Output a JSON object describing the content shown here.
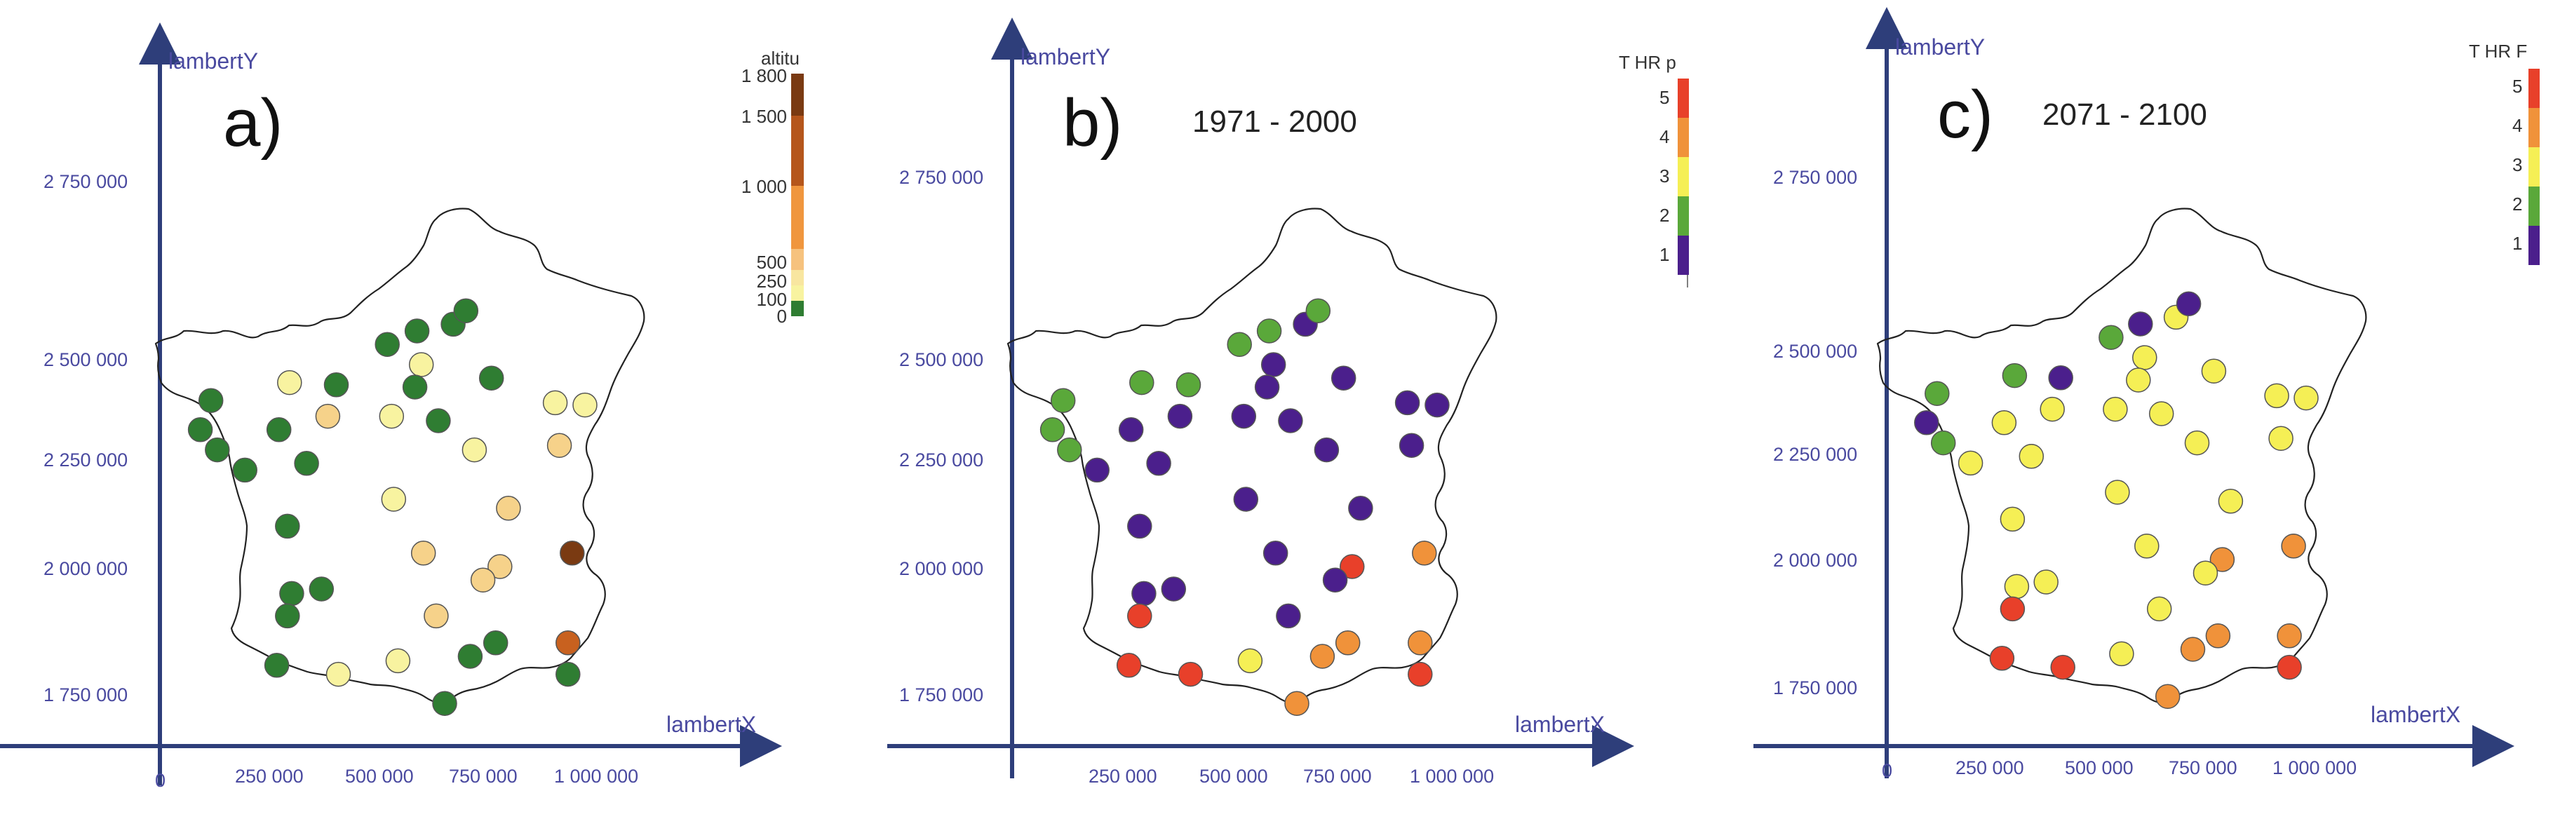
{
  "axes": {
    "y_label": "lambertY",
    "x_label": "lambertX",
    "y_ticks": [
      "2 750 000",
      "2 500 000",
      "2 250 000",
      "2 000 000",
      "1 750 000"
    ],
    "x_ticks": [
      "250 000",
      "500 000",
      "750 000",
      "1 000 000"
    ],
    "origin_label": "0"
  },
  "colors": {
    "axis": "#2e3e7a",
    "tick_text": "#4a4aa0",
    "class_1": "#4b1f8c",
    "class_2": "#5aa83a",
    "class_3": "#f5ef55",
    "class_4": "#f0923a",
    "class_5": "#e8402a",
    "alt_low": "#2f7d32",
    "alt_100": "#f8f3a0",
    "alt_250": "#f6d28a",
    "alt_500": "#f0963e",
    "alt_1000": "#c8611f",
    "alt_1800": "#7a3a12"
  },
  "panels": [
    {
      "letter": "a)",
      "period": "",
      "legend": {
        "title": "altitu",
        "ticks": [
          "1 800",
          "1 500",
          "1 000",
          "500",
          "250",
          "100",
          "0"
        ]
      },
      "stations": [
        {
          "lx": 120000,
          "ly": 2420000,
          "alt": 20
        },
        {
          "lx": 95000,
          "ly": 2355000,
          "alt": 30
        },
        {
          "lx": 135000,
          "ly": 2310000,
          "alt": 25
        },
        {
          "lx": 200000,
          "ly": 2265000,
          "alt": 15
        },
        {
          "lx": 280000,
          "ly": 2355000,
          "alt": 40
        },
        {
          "lx": 305000,
          "ly": 2460000,
          "alt": 150
        },
        {
          "lx": 415000,
          "ly": 2455000,
          "alt": 60
        },
        {
          "lx": 395000,
          "ly": 2385000,
          "alt": 320
        },
        {
          "lx": 345000,
          "ly": 2280000,
          "alt": 50
        },
        {
          "lx": 535000,
          "ly": 2545000,
          "alt": 70
        },
        {
          "lx": 605000,
          "ly": 2575000,
          "alt": 40
        },
        {
          "lx": 615000,
          "ly": 2500000,
          "alt": 140
        },
        {
          "lx": 600000,
          "ly": 2450000,
          "alt": 80
        },
        {
          "lx": 545000,
          "ly": 2385000,
          "alt": 160
        },
        {
          "lx": 655000,
          "ly": 2375000,
          "alt": 60
        },
        {
          "lx": 690000,
          "ly": 2590000,
          "alt": 30
        },
        {
          "lx": 720000,
          "ly": 2620000,
          "alt": 20
        },
        {
          "lx": 780000,
          "ly": 2470000,
          "alt": 90
        },
        {
          "lx": 740000,
          "ly": 2310000,
          "alt": 180
        },
        {
          "lx": 930000,
          "ly": 2415000,
          "alt": 170
        },
        {
          "lx": 1000000,
          "ly": 2410000,
          "alt": 160
        },
        {
          "lx": 940000,
          "ly": 2320000,
          "alt": 300
        },
        {
          "lx": 300000,
          "ly": 2140000,
          "alt": 20
        },
        {
          "lx": 550000,
          "ly": 2200000,
          "alt": 150
        },
        {
          "lx": 820000,
          "ly": 2180000,
          "alt": 260
        },
        {
          "lx": 620000,
          "ly": 2080000,
          "alt": 420
        },
        {
          "lx": 800000,
          "ly": 2050000,
          "alt": 460
        },
        {
          "lx": 760000,
          "ly": 2020000,
          "alt": 420
        },
        {
          "lx": 970000,
          "ly": 2080000,
          "alt": 1700
        },
        {
          "lx": 310000,
          "ly": 1990000,
          "alt": 10
        },
        {
          "lx": 380000,
          "ly": 2000000,
          "alt": 40
        },
        {
          "lx": 300000,
          "ly": 1940000,
          "alt": 30
        },
        {
          "lx": 650000,
          "ly": 1940000,
          "alt": 450
        },
        {
          "lx": 275000,
          "ly": 1830000,
          "alt": 40
        },
        {
          "lx": 420000,
          "ly": 1810000,
          "alt": 240
        },
        {
          "lx": 560000,
          "ly": 1840000,
          "alt": 160
        },
        {
          "lx": 730000,
          "ly": 1850000,
          "alt": 20
        },
        {
          "lx": 790000,
          "ly": 1880000,
          "alt": 30
        },
        {
          "lx": 960000,
          "ly": 1880000,
          "alt": 1350
        },
        {
          "lx": 960000,
          "ly": 1810000,
          "alt": 10
        },
        {
          "lx": 670000,
          "ly": 1745000,
          "alt": 30
        }
      ]
    },
    {
      "letter": "b)",
      "period": "1971 - 2000",
      "legend": {
        "title": "T HR p",
        "ticks": [
          "5",
          "4",
          "3",
          "2",
          "1"
        ]
      },
      "stations": [
        {
          "lx": 120000,
          "ly": 2420000,
          "c": 2
        },
        {
          "lx": 95000,
          "ly": 2355000,
          "c": 2
        },
        {
          "lx": 135000,
          "ly": 2310000,
          "c": 2
        },
        {
          "lx": 200000,
          "ly": 2265000,
          "c": 1
        },
        {
          "lx": 280000,
          "ly": 2355000,
          "c": 1
        },
        {
          "lx": 305000,
          "ly": 2460000,
          "c": 2
        },
        {
          "lx": 415000,
          "ly": 2455000,
          "c": 2
        },
        {
          "lx": 395000,
          "ly": 2385000,
          "c": 1
        },
        {
          "lx": 345000,
          "ly": 2280000,
          "c": 1
        },
        {
          "lx": 535000,
          "ly": 2545000,
          "c": 2
        },
        {
          "lx": 605000,
          "ly": 2575000,
          "c": 2
        },
        {
          "lx": 615000,
          "ly": 2500000,
          "c": 1
        },
        {
          "lx": 600000,
          "ly": 2450000,
          "c": 1
        },
        {
          "lx": 545000,
          "ly": 2385000,
          "c": 1
        },
        {
          "lx": 655000,
          "ly": 2375000,
          "c": 1
        },
        {
          "lx": 690000,
          "ly": 2590000,
          "c": 1
        },
        {
          "lx": 720000,
          "ly": 2620000,
          "c": 2
        },
        {
          "lx": 780000,
          "ly": 2470000,
          "c": 1
        },
        {
          "lx": 740000,
          "ly": 2310000,
          "c": 1
        },
        {
          "lx": 930000,
          "ly": 2415000,
          "c": 1
        },
        {
          "lx": 1000000,
          "ly": 2410000,
          "c": 1
        },
        {
          "lx": 940000,
          "ly": 2320000,
          "c": 1
        },
        {
          "lx": 300000,
          "ly": 2140000,
          "c": 1
        },
        {
          "lx": 550000,
          "ly": 2200000,
          "c": 1
        },
        {
          "lx": 820000,
          "ly": 2180000,
          "c": 1
        },
        {
          "lx": 620000,
          "ly": 2080000,
          "c": 1
        },
        {
          "lx": 800000,
          "ly": 2050000,
          "c": 5
        },
        {
          "lx": 760000,
          "ly": 2020000,
          "c": 1
        },
        {
          "lx": 970000,
          "ly": 2080000,
          "c": 4
        },
        {
          "lx": 310000,
          "ly": 1990000,
          "c": 1
        },
        {
          "lx": 380000,
          "ly": 2000000,
          "c": 1
        },
        {
          "lx": 300000,
          "ly": 1940000,
          "c": 5
        },
        {
          "lx": 650000,
          "ly": 1940000,
          "c": 1
        },
        {
          "lx": 275000,
          "ly": 1830000,
          "c": 5
        },
        {
          "lx": 420000,
          "ly": 1810000,
          "c": 5
        },
        {
          "lx": 560000,
          "ly": 1840000,
          "c": 3
        },
        {
          "lx": 730000,
          "ly": 1850000,
          "c": 4
        },
        {
          "lx": 790000,
          "ly": 1880000,
          "c": 4
        },
        {
          "lx": 960000,
          "ly": 1880000,
          "c": 4
        },
        {
          "lx": 960000,
          "ly": 1810000,
          "c": 5
        },
        {
          "lx": 670000,
          "ly": 1745000,
          "c": 4
        }
      ]
    },
    {
      "letter": "c)",
      "period": "2071 - 2100",
      "legend": {
        "title": "T HR F",
        "ticks": [
          "5",
          "4",
          "3",
          "2",
          "1"
        ]
      },
      "stations": [
        {
          "lx": 120000,
          "ly": 2420000,
          "c": 2
        },
        {
          "lx": 95000,
          "ly": 2355000,
          "c": 1
        },
        {
          "lx": 135000,
          "ly": 2310000,
          "c": 2
        },
        {
          "lx": 200000,
          "ly": 2265000,
          "c": 3
        },
        {
          "lx": 280000,
          "ly": 2355000,
          "c": 3
        },
        {
          "lx": 305000,
          "ly": 2460000,
          "c": 2
        },
        {
          "lx": 415000,
          "ly": 2455000,
          "c": 1
        },
        {
          "lx": 395000,
          "ly": 2385000,
          "c": 3
        },
        {
          "lx": 345000,
          "ly": 2280000,
          "c": 3
        },
        {
          "lx": 535000,
          "ly": 2545000,
          "c": 2
        },
        {
          "lx": 605000,
          "ly": 2575000,
          "c": 1
        },
        {
          "lx": 615000,
          "ly": 2500000,
          "c": 3
        },
        {
          "lx": 600000,
          "ly": 2450000,
          "c": 3
        },
        {
          "lx": 545000,
          "ly": 2385000,
          "c": 3
        },
        {
          "lx": 655000,
          "ly": 2375000,
          "c": 3
        },
        {
          "lx": 690000,
          "ly": 2590000,
          "c": 3
        },
        {
          "lx": 720000,
          "ly": 2620000,
          "c": 1
        },
        {
          "lx": 780000,
          "ly": 2470000,
          "c": 3
        },
        {
          "lx": 740000,
          "ly": 2310000,
          "c": 3
        },
        {
          "lx": 930000,
          "ly": 2415000,
          "c": 3
        },
        {
          "lx": 1000000,
          "ly": 2410000,
          "c": 3
        },
        {
          "lx": 940000,
          "ly": 2320000,
          "c": 3
        },
        {
          "lx": 300000,
          "ly": 2140000,
          "c": 3
        },
        {
          "lx": 550000,
          "ly": 2200000,
          "c": 3
        },
        {
          "lx": 820000,
          "ly": 2180000,
          "c": 3
        },
        {
          "lx": 620000,
          "ly": 2080000,
          "c": 3
        },
        {
          "lx": 800000,
          "ly": 2050000,
          "c": 4
        },
        {
          "lx": 760000,
          "ly": 2020000,
          "c": 3
        },
        {
          "lx": 970000,
          "ly": 2080000,
          "c": 4
        },
        {
          "lx": 310000,
          "ly": 1990000,
          "c": 3
        },
        {
          "lx": 380000,
          "ly": 2000000,
          "c": 3
        },
        {
          "lx": 300000,
          "ly": 1940000,
          "c": 5
        },
        {
          "lx": 650000,
          "ly": 1940000,
          "c": 3
        },
        {
          "lx": 275000,
          "ly": 1830000,
          "c": 5
        },
        {
          "lx": 420000,
          "ly": 1810000,
          "c": 5
        },
        {
          "lx": 560000,
          "ly": 1840000,
          "c": 3
        },
        {
          "lx": 730000,
          "ly": 1850000,
          "c": 4
        },
        {
          "lx": 790000,
          "ly": 1880000,
          "c": 4
        },
        {
          "lx": 960000,
          "ly": 1880000,
          "c": 4
        },
        {
          "lx": 960000,
          "ly": 1810000,
          "c": 5
        },
        {
          "lx": 670000,
          "ly": 1745000,
          "c": 4
        }
      ]
    }
  ]
}
